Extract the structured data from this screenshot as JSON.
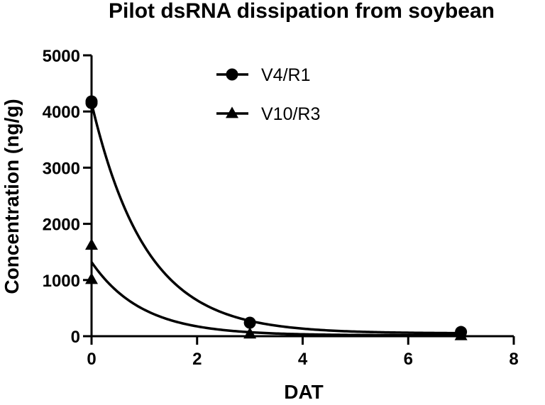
{
  "chart_data": {
    "type": "scatter",
    "title": "Pilot dsRNA dissipation from soybean",
    "xlabel": "DAT",
    "ylabel": "Concentration (ng/g)",
    "xlim": [
      0,
      8
    ],
    "ylim": [
      0,
      5000
    ],
    "x_ticks": [
      0,
      2,
      4,
      6,
      8
    ],
    "y_ticks": [
      0,
      1000,
      2000,
      3000,
      4000,
      5000
    ],
    "grid": false,
    "legend_position": "top-center",
    "series": [
      {
        "name": "V4/R1",
        "marker": "circle",
        "color": "#000000",
        "points": [
          {
            "x": 0,
            "y": 4180
          },
          {
            "x": 0,
            "y": 4150
          },
          {
            "x": 3,
            "y": 240
          },
          {
            "x": 7,
            "y": 75
          }
        ],
        "fit": {
          "model": "exponential",
          "y0": 4150,
          "k": 0.97,
          "plateau": 50
        }
      },
      {
        "name": "V10/R3",
        "marker": "triangle",
        "color": "#000000",
        "points": [
          {
            "x": 0,
            "y": 1620
          },
          {
            "x": 0,
            "y": 1010
          },
          {
            "x": 3,
            "y": 40
          },
          {
            "x": 7,
            "y": 10
          }
        ],
        "fit": {
          "model": "exponential",
          "y0": 1320,
          "k": 1.05,
          "plateau": 15
        }
      }
    ]
  }
}
